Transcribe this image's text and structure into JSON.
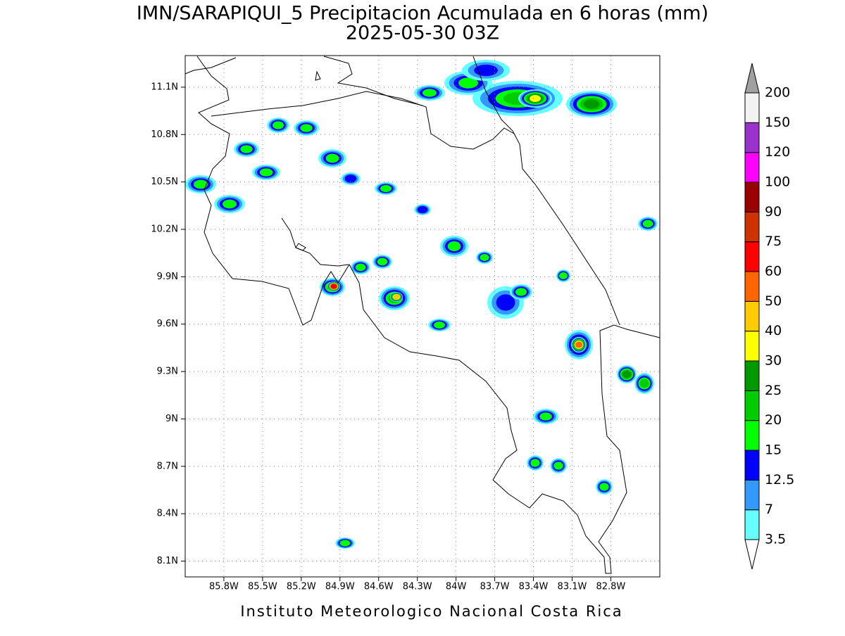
{
  "header": {
    "title": "IMN/SARAPIQUI_5 Precipitacion Acumulada en 6 horas (mm)",
    "subtitle": "2025-05-30 03Z"
  },
  "map": {
    "xlim": [
      -86.1,
      -82.42
    ],
    "ylim": [
      8.0,
      11.3
    ],
    "xticks": [
      {
        "value": -85.8,
        "label": "85.8W"
      },
      {
        "value": -85.5,
        "label": "85.5W"
      },
      {
        "value": -85.2,
        "label": "85.2W"
      },
      {
        "value": -84.9,
        "label": "84.9W"
      },
      {
        "value": -84.6,
        "label": "84.6W"
      },
      {
        "value": -84.3,
        "label": "84.3W"
      },
      {
        "value": -84,
        "label": "84W"
      },
      {
        "value": -83.7,
        "label": "83.7W"
      },
      {
        "value": -83.4,
        "label": "83.4W"
      },
      {
        "value": -83.1,
        "label": "83.1W"
      },
      {
        "value": -82.8,
        "label": "82.8W"
      }
    ],
    "yticks": [
      {
        "value": 8.1,
        "label": "8.1N"
      },
      {
        "value": 8.4,
        "label": "8.4N"
      },
      {
        "value": 8.7,
        "label": "8.7N"
      },
      {
        "value": 9,
        "label": "9N"
      },
      {
        "value": 9.3,
        "label": "9.3N"
      },
      {
        "value": 9.6,
        "label": "9.6N"
      },
      {
        "value": 9.9,
        "label": "9.9N"
      },
      {
        "value": 10.2,
        "label": "10.2N"
      },
      {
        "value": 10.5,
        "label": "10.5N"
      },
      {
        "value": 10.8,
        "label": "10.8N"
      },
      {
        "value": 11.1,
        "label": "11.1N"
      }
    ],
    "grid": true
  },
  "colorbar": {
    "levels": [
      3.5,
      7,
      12.5,
      15,
      20,
      25,
      30,
      40,
      50,
      60,
      75,
      90,
      100,
      120,
      150,
      200
    ],
    "colors": [
      "#66ffff",
      "#3399ff",
      "#0000ff",
      "#00ff00",
      "#00cc00",
      "#009900",
      "#ffff00",
      "#ffcc00",
      "#ff6600",
      "#ff0000",
      "#cc3300",
      "#990000",
      "#ff00ff",
      "#9933cc",
      "#f2f2f2"
    ],
    "under_color": "#ffffff",
    "over_color": "#a0a0a0"
  },
  "footer": "Instituto Meteorologico Nacional Costa Rica"
}
